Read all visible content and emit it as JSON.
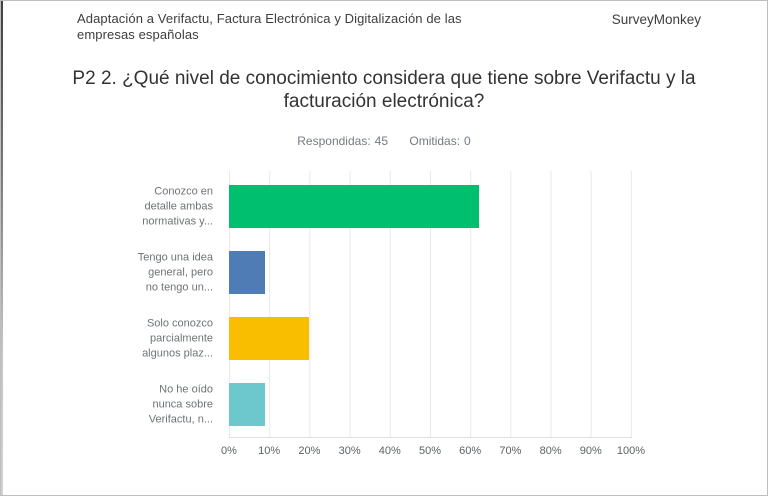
{
  "header": {
    "survey_title": "Adaptación a Verifactu, Factura Electrónica y Digitalización de las empresas españolas",
    "brand": "SurveyMonkey"
  },
  "question": {
    "title": "P2 2. ¿Qué nivel de conocimiento considera que tiene sobre Verifactu y la facturación electrónica?"
  },
  "stats": {
    "answered_label": "Respondidas:",
    "answered_value": "45",
    "skipped_label": "Omitidas:",
    "skipped_value": "0"
  },
  "chart_data": {
    "type": "bar",
    "orientation": "horizontal",
    "title": "",
    "categories": [
      "Conozco en detalle ambas normativas y...",
      "Tengo una idea general, pero no tengo un...",
      "Solo conozco parcialmente algunos plaz...",
      "No he oído nunca sobre Verifactu, n..."
    ],
    "category_label_lines": [
      [
        "Conozco en",
        "detalle ambas",
        "normativas y..."
      ],
      [
        "Tengo una idea",
        "general, pero",
        "no tengo un..."
      ],
      [
        "Solo conozco",
        "parcialmente",
        "algunos plaz..."
      ],
      [
        "No he oído",
        "nunca sobre",
        "Verifactu, n..."
      ]
    ],
    "values": [
      62.22,
      8.89,
      20,
      8.89
    ],
    "bar_colors": [
      "#00BF6F",
      "#507CB5",
      "#F9BE00",
      "#6DC8CD"
    ],
    "x_ticks": [
      "0%",
      "10%",
      "20%",
      "30%",
      "40%",
      "50%",
      "60%",
      "70%",
      "80%",
      "90%",
      "100%"
    ],
    "xlabel": "",
    "ylabel": "",
    "xlim": [
      0,
      100
    ],
    "grid": true,
    "legend": false
  },
  "colors": {
    "grid_line": "#e9e9e9",
    "axis_line": "#e0e0e0",
    "header_text": "#3d3d3d",
    "title_text": "#333333",
    "muted_text": "#757b82",
    "category_label_text": "#6e7377",
    "tick_text": "#5b6167"
  }
}
